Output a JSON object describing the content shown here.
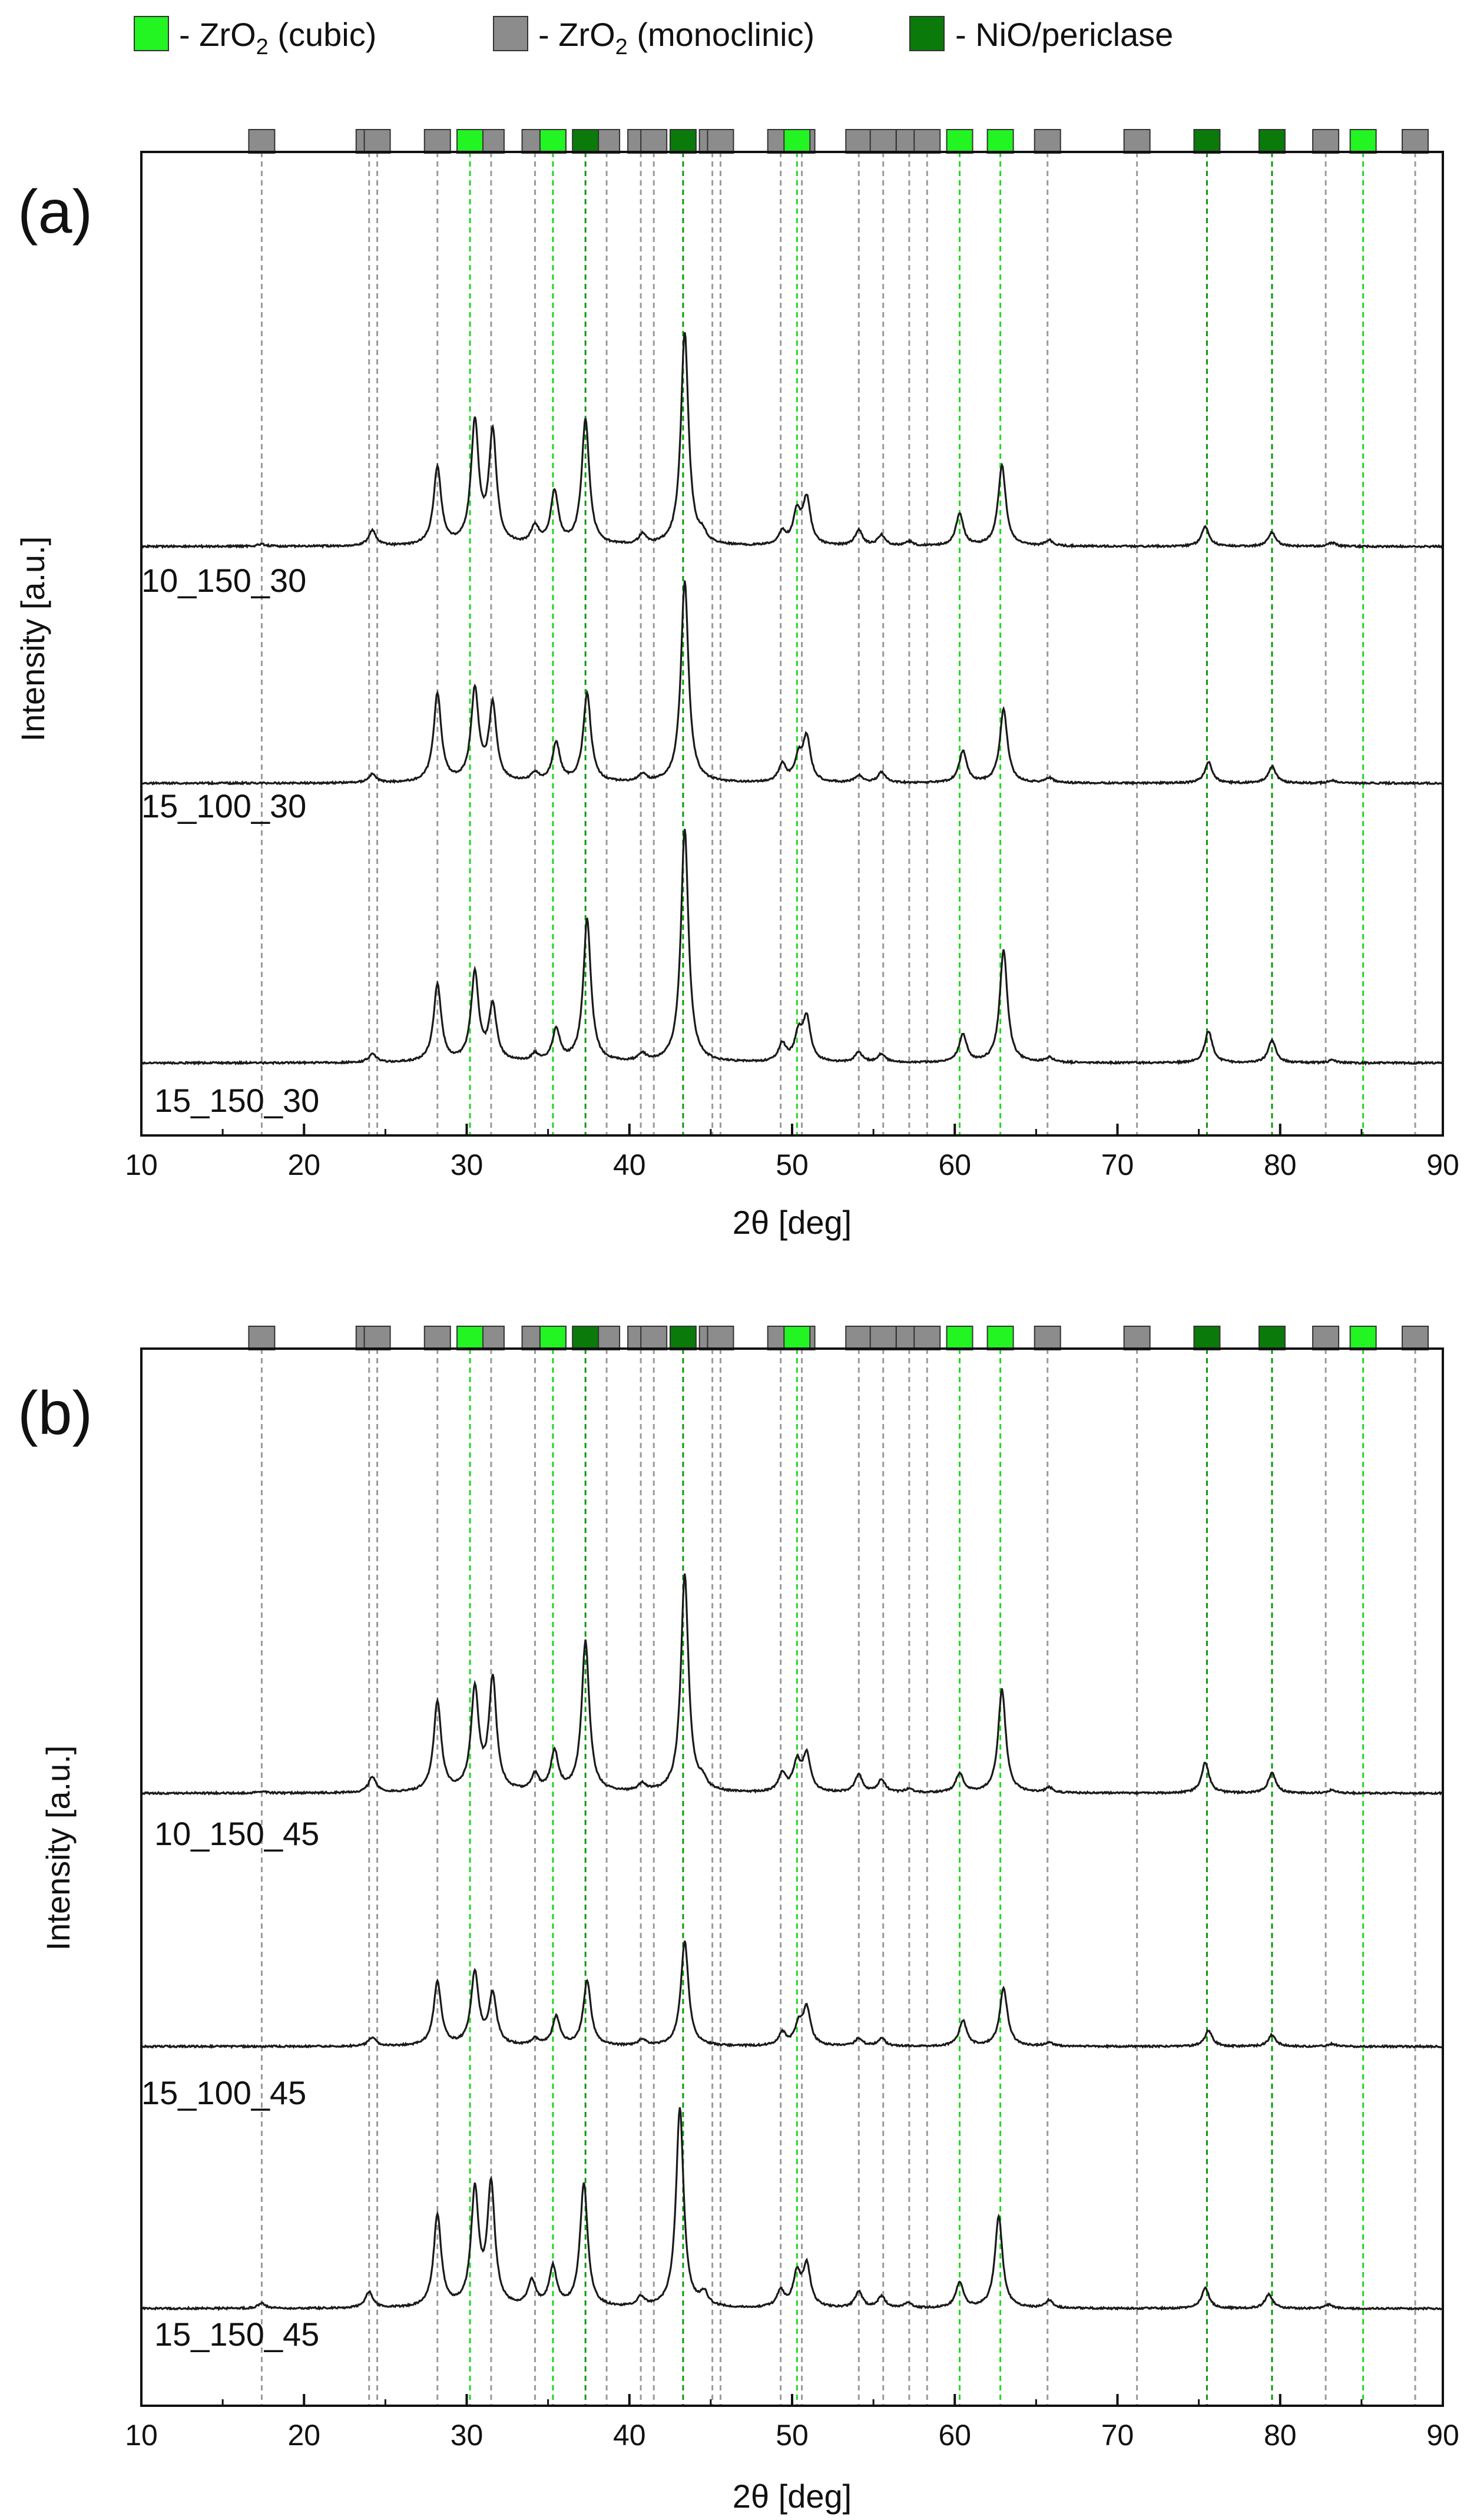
{
  "legend": {
    "cubic": {
      "label": "- ZrO",
      "sub": "2",
      "tail": " (cubic)",
      "color": "#22f522"
    },
    "mono": {
      "label": "- ZrO",
      "sub": "2",
      "tail": " (monoclinic)",
      "color": "#8c8c8c"
    },
    "nio": {
      "label": "- NiO/periclase",
      "color": "#0a7a0a"
    }
  },
  "colors": {
    "trace": "#1a1a1a",
    "monoLine": "#9a9a9a",
    "cubicLine": "#22d822",
    "nioLine": "#0a9a0a"
  },
  "chart_data": [
    {
      "type": "line",
      "panel_label": "(a)",
      "xlabel": "2θ [deg]",
      "ylabel": "Intensity [a.u.]",
      "xlim": [
        10,
        90
      ],
      "xticks": [
        10,
        20,
        30,
        40,
        50,
        60,
        70,
        80,
        90
      ],
      "reference_peaks": {
        "monoclinic": [
          17.4,
          24.0,
          24.5,
          28.2,
          31.5,
          34.2,
          35.3,
          38.6,
          40.7,
          41.5,
          45.1,
          45.6,
          49.3,
          50.6,
          54.1,
          55.6,
          57.2,
          58.3,
          65.7,
          71.2,
          82.8,
          88.3
        ],
        "cubic": [
          30.2,
          35.3,
          50.3,
          60.3,
          62.8,
          85.1
        ],
        "nio": [
          37.3,
          43.3,
          75.5,
          79.5
        ]
      },
      "series": [
        {
          "name": "10_150_30",
          "peaks": [
            [
              17.4,
              0.03
            ],
            [
              24.2,
              0.22
            ],
            [
              28.2,
              1.1
            ],
            [
              30.5,
              1.72
            ],
            [
              31.6,
              1.58
            ],
            [
              34.2,
              0.25
            ],
            [
              35.4,
              0.75
            ],
            [
              37.3,
              1.78
            ],
            [
              40.8,
              0.14
            ],
            [
              43.4,
              3.02
            ],
            [
              44.5,
              0.12
            ],
            [
              49.4,
              0.18
            ],
            [
              50.3,
              0.45
            ],
            [
              50.9,
              0.65
            ],
            [
              54.1,
              0.22
            ],
            [
              55.5,
              0.15
            ],
            [
              57.2,
              0.06
            ],
            [
              60.3,
              0.45
            ],
            [
              62.9,
              1.15
            ],
            [
              65.8,
              0.08
            ],
            [
              75.4,
              0.28
            ],
            [
              79.5,
              0.2
            ],
            [
              83.2,
              0.05
            ]
          ]
        },
        {
          "name": "15_100_30",
          "peaks": [
            [
              24.2,
              0.12
            ],
            [
              28.2,
              1.26
            ],
            [
              30.5,
              1.3
            ],
            [
              31.6,
              1.08
            ],
            [
              34.2,
              0.12
            ],
            [
              35.5,
              0.55
            ],
            [
              37.4,
              1.26
            ],
            [
              40.8,
              0.1
            ],
            [
              43.4,
              2.85
            ],
            [
              49.4,
              0.25
            ],
            [
              50.4,
              0.32
            ],
            [
              50.9,
              0.62
            ],
            [
              54.1,
              0.1
            ],
            [
              55.5,
              0.15
            ],
            [
              60.5,
              0.45
            ],
            [
              63.0,
              1.04
            ],
            [
              65.8,
              0.07
            ],
            [
              75.6,
              0.3
            ],
            [
              79.5,
              0.24
            ],
            [
              83.2,
              0.04
            ]
          ]
        },
        {
          "name": "15_150_30",
          "peaks": [
            [
              24.2,
              0.12
            ],
            [
              28.2,
              1.1
            ],
            [
              30.5,
              1.25
            ],
            [
              31.6,
              0.78
            ],
            [
              34.2,
              0.1
            ],
            [
              35.5,
              0.45
            ],
            [
              37.4,
              2.02
            ],
            [
              40.8,
              0.1
            ],
            [
              43.4,
              3.3
            ],
            [
              49.4,
              0.25
            ],
            [
              50.4,
              0.38
            ],
            [
              50.9,
              0.6
            ],
            [
              54.1,
              0.14
            ],
            [
              55.5,
              0.12
            ],
            [
              60.5,
              0.4
            ],
            [
              63.0,
              1.6
            ],
            [
              65.8,
              0.07
            ],
            [
              75.6,
              0.45
            ],
            [
              79.5,
              0.32
            ],
            [
              83.2,
              0.04
            ]
          ]
        }
      ]
    },
    {
      "type": "line",
      "panel_label": "(b)",
      "xlabel": "2θ [deg]",
      "ylabel": "Intensity [a.u.]",
      "xlim": [
        10,
        90
      ],
      "xticks": [
        10,
        20,
        30,
        40,
        50,
        60,
        70,
        80,
        90
      ],
      "reference_peaks": {
        "monoclinic": [
          17.4,
          24.0,
          24.5,
          28.2,
          31.5,
          34.2,
          35.3,
          38.6,
          40.7,
          41.5,
          45.1,
          45.6,
          49.3,
          50.6,
          54.1,
          55.6,
          57.2,
          58.3,
          65.7,
          71.2,
          82.8,
          88.3
        ],
        "cubic": [
          30.2,
          35.3,
          50.3,
          60.3,
          62.8,
          85.1
        ],
        "nio": [
          37.3,
          43.3,
          75.5,
          79.5
        ]
      },
      "series": [
        {
          "name": "10_150_45",
          "peaks": [
            [
              17.4,
              0.03
            ],
            [
              24.2,
              0.25
            ],
            [
              28.2,
              1.42
            ],
            [
              30.5,
              1.6
            ],
            [
              31.6,
              1.75
            ],
            [
              34.2,
              0.25
            ],
            [
              35.4,
              0.62
            ],
            [
              37.3,
              2.37
            ],
            [
              40.8,
              0.12
            ],
            [
              43.4,
              3.42
            ],
            [
              44.5,
              0.14
            ],
            [
              49.4,
              0.28
            ],
            [
              50.3,
              0.45
            ],
            [
              50.9,
              0.58
            ],
            [
              54.1,
              0.28
            ],
            [
              55.5,
              0.2
            ],
            [
              57.2,
              0.06
            ],
            [
              60.3,
              0.3
            ],
            [
              62.9,
              1.63
            ],
            [
              65.8,
              0.08
            ],
            [
              75.4,
              0.48
            ],
            [
              79.5,
              0.32
            ],
            [
              83.2,
              0.05
            ]
          ]
        },
        {
          "name": "15_100_45",
          "peaks": [
            [
              24.2,
              0.14
            ],
            [
              28.2,
              1.0
            ],
            [
              30.5,
              1.15
            ],
            [
              31.6,
              0.8
            ],
            [
              34.2,
              0.1
            ],
            [
              35.5,
              0.45
            ],
            [
              37.4,
              1.02
            ],
            [
              40.8,
              0.1
            ],
            [
              43.4,
              1.65
            ],
            [
              49.4,
              0.2
            ],
            [
              50.4,
              0.3
            ],
            [
              50.9,
              0.58
            ],
            [
              54.1,
              0.12
            ],
            [
              55.5,
              0.12
            ],
            [
              60.5,
              0.4
            ],
            [
              63.0,
              0.92
            ],
            [
              65.8,
              0.06
            ],
            [
              75.6,
              0.25
            ],
            [
              79.5,
              0.18
            ],
            [
              83.2,
              0.04
            ]
          ]
        },
        {
          "name": "15_150_45",
          "peaks": [
            [
              17.4,
              0.08
            ],
            [
              24.0,
              0.25
            ],
            [
              28.2,
              1.45
            ],
            [
              30.5,
              1.8
            ],
            [
              31.5,
              1.9
            ],
            [
              34.0,
              0.4
            ],
            [
              35.3,
              0.62
            ],
            [
              37.2,
              1.95
            ],
            [
              40.7,
              0.15
            ],
            [
              43.1,
              3.15
            ],
            [
              44.6,
              0.2
            ],
            [
              49.3,
              0.25
            ],
            [
              50.3,
              0.5
            ],
            [
              50.9,
              0.65
            ],
            [
              54.1,
              0.25
            ],
            [
              55.5,
              0.18
            ],
            [
              57.1,
              0.08
            ],
            [
              60.3,
              0.4
            ],
            [
              62.7,
              1.45
            ],
            [
              65.8,
              0.12
            ],
            [
              75.4,
              0.32
            ],
            [
              79.3,
              0.22
            ],
            [
              83.0,
              0.06
            ]
          ]
        }
      ]
    }
  ]
}
